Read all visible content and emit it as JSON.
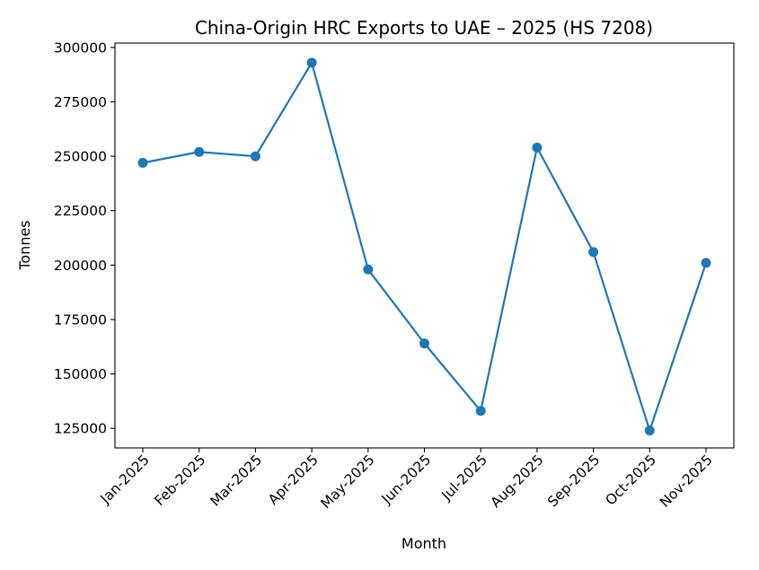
{
  "chart_data": {
    "type": "line",
    "title": "China-Origin HRC Exports to UAE – 2025 (HS 7208)",
    "xlabel": "Month",
    "ylabel": "Tonnes",
    "categories": [
      "Jan-2025",
      "Feb-2025",
      "Mar-2025",
      "Apr-2025",
      "May-2025",
      "Jun-2025",
      "Jul-2025",
      "Aug-2025",
      "Sep-2025",
      "Oct-2025",
      "Nov-2025"
    ],
    "series": [
      {
        "values": [
          247000,
          252000,
          250000,
          293000,
          198000,
          164000,
          133000,
          254000,
          206000,
          124000,
          201000
        ],
        "color": "#1f77b4",
        "marker": "circle"
      }
    ],
    "yticks": [
      125000,
      150000,
      175000,
      200000,
      225000,
      250000,
      275000,
      300000
    ],
    "ylim": [
      116000,
      302000
    ],
    "grid": false,
    "legend": "none"
  }
}
